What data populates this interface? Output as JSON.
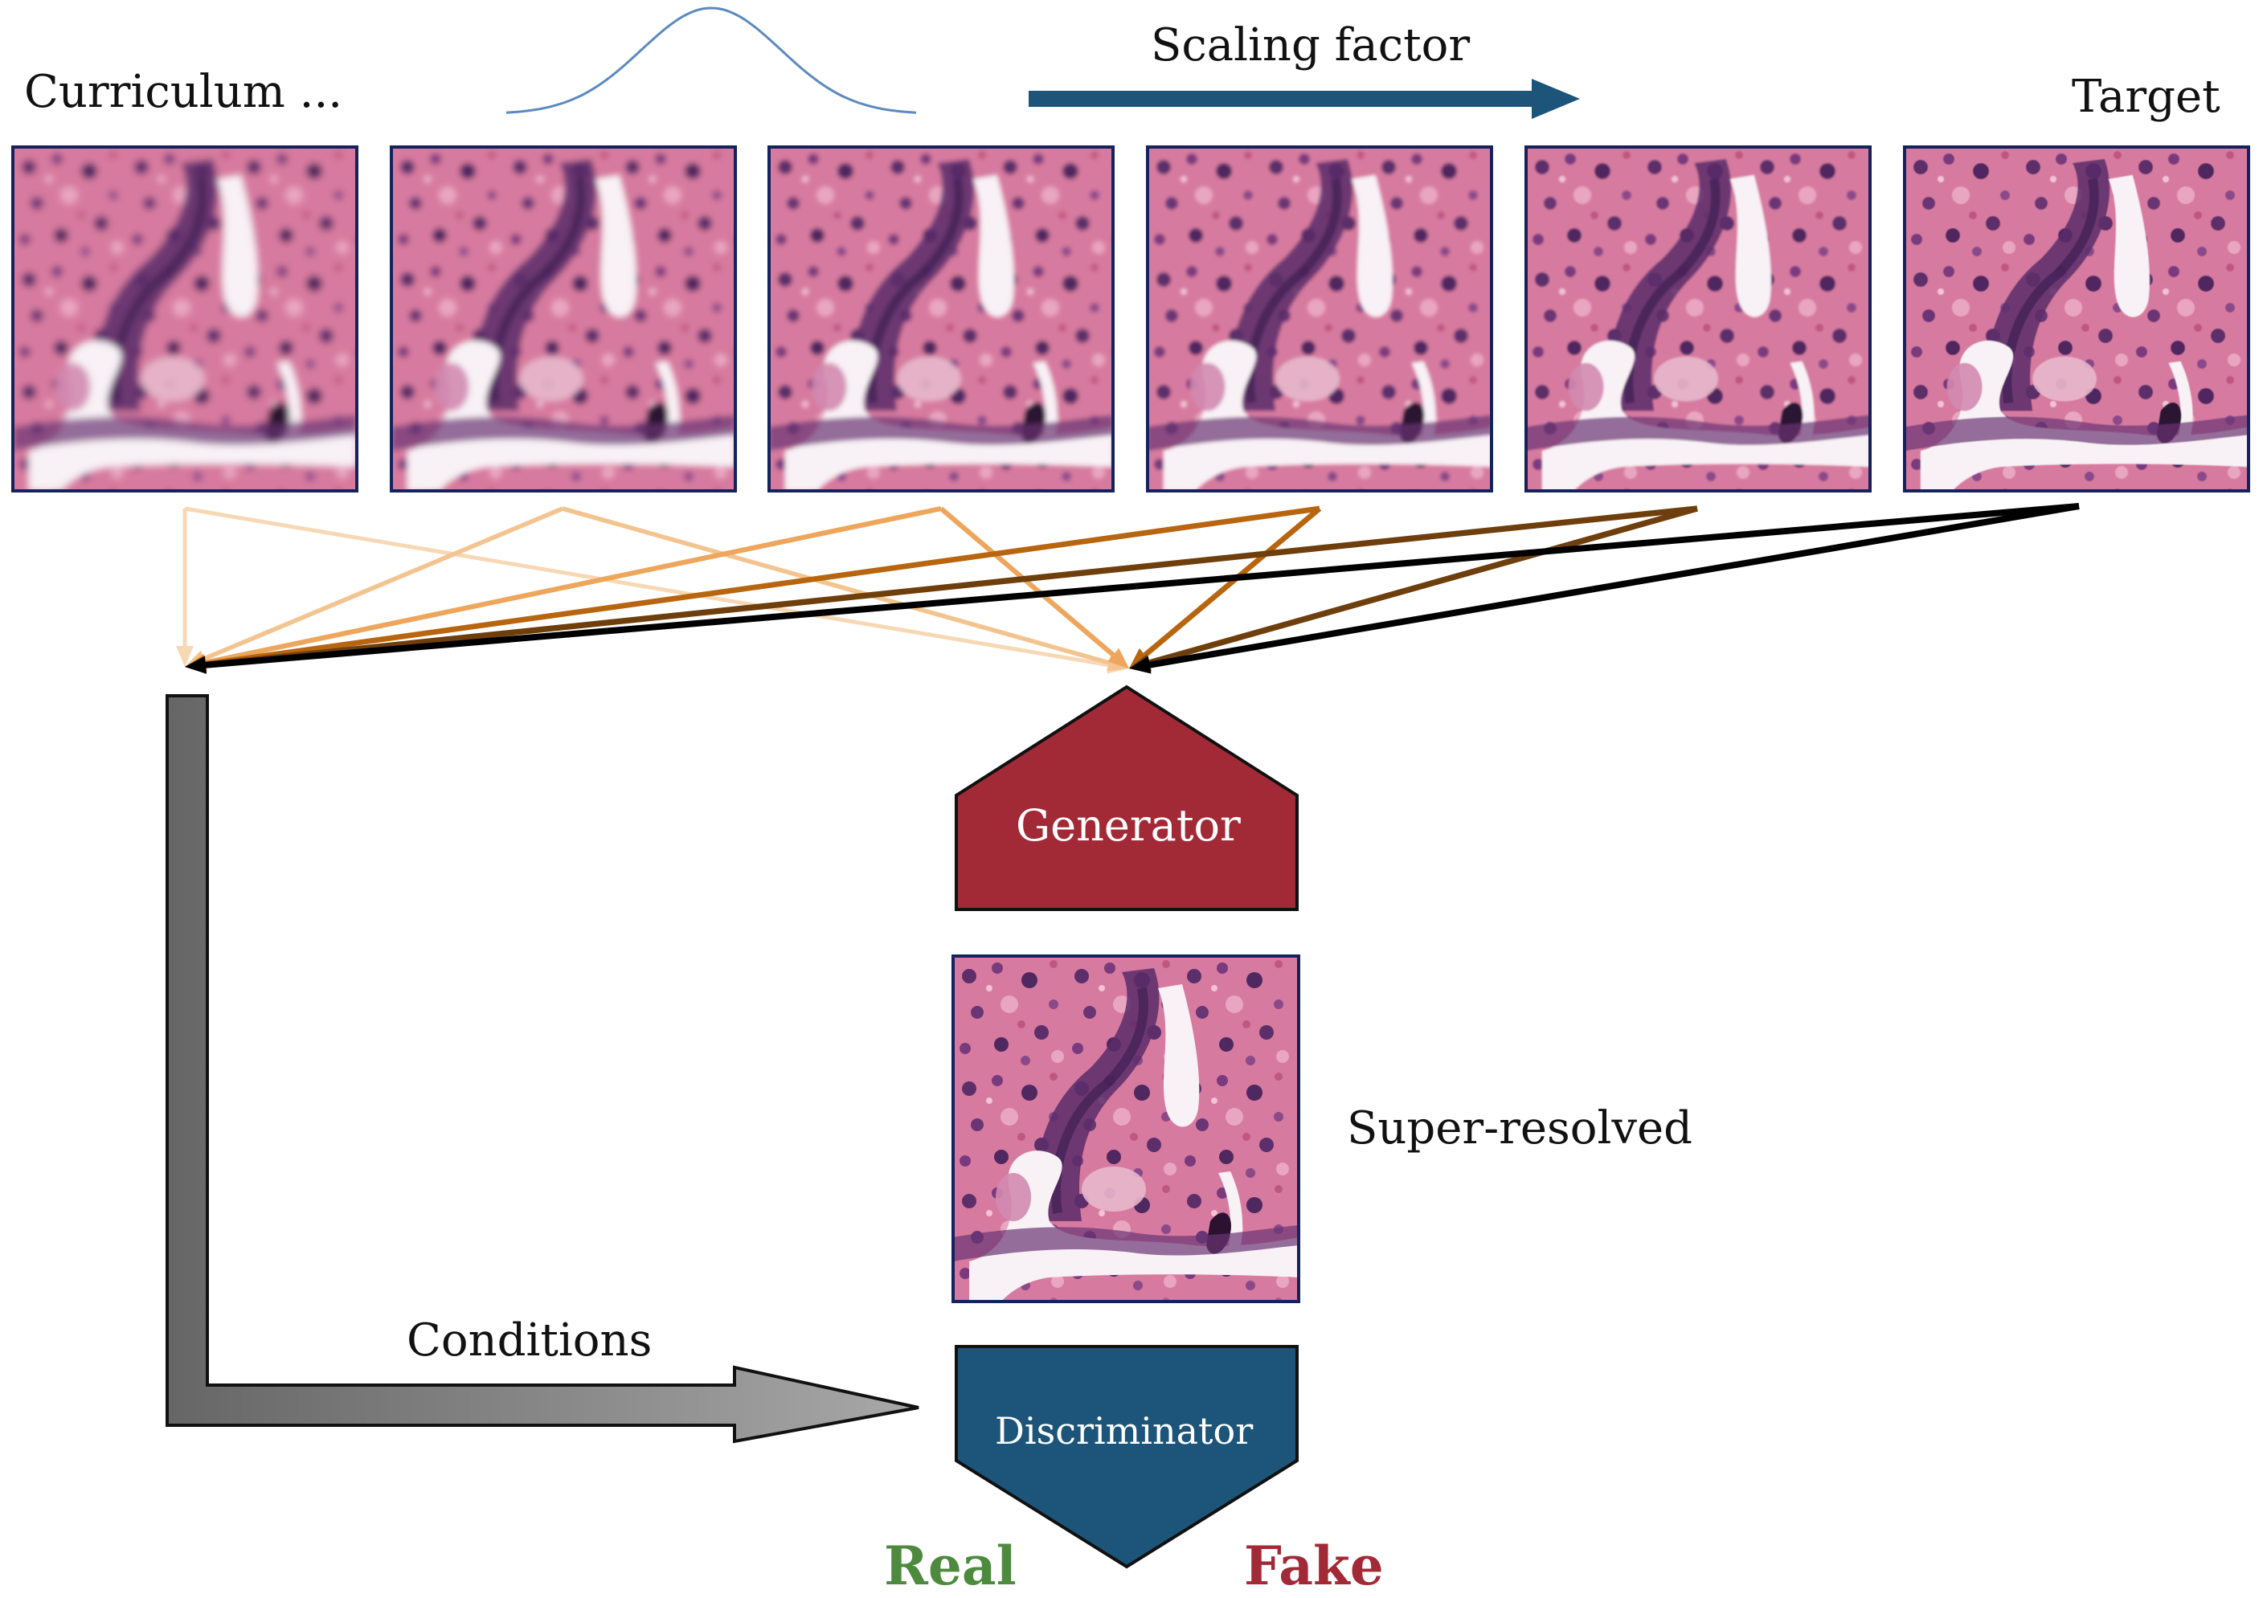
{
  "labels": {
    "curriculum": "Curriculum ...",
    "scaling_factor": "Scaling factor",
    "target": "Target",
    "generator": "Generator",
    "super_resolved": "Super-resolved",
    "conditions": "Conditions",
    "discriminator": "Discriminator",
    "real": "Real",
    "fake": "Fake"
  },
  "colors": {
    "generator": "#a22a36",
    "discriminator": "#1c5579",
    "scaling_arrow": "#1c5579",
    "gaussian_curve": "#5b8abf",
    "real": "#4e8a3e",
    "fake": "#a22a36",
    "tile_border": "#14235c",
    "condition_arrow_dark": "#666666",
    "condition_arrow_light": "#a8a8a8",
    "feed_arrows": [
      "#f7d8b5",
      "#f3c48f",
      "#eda65c",
      "#b8650f",
      "#6e3f0d",
      "#000000"
    ]
  },
  "images": {
    "count": 6,
    "blur_levels": [
      4.5,
      3.6,
      2.8,
      2.0,
      1.2,
      0.5
    ],
    "super_resolved_blur": 0
  }
}
